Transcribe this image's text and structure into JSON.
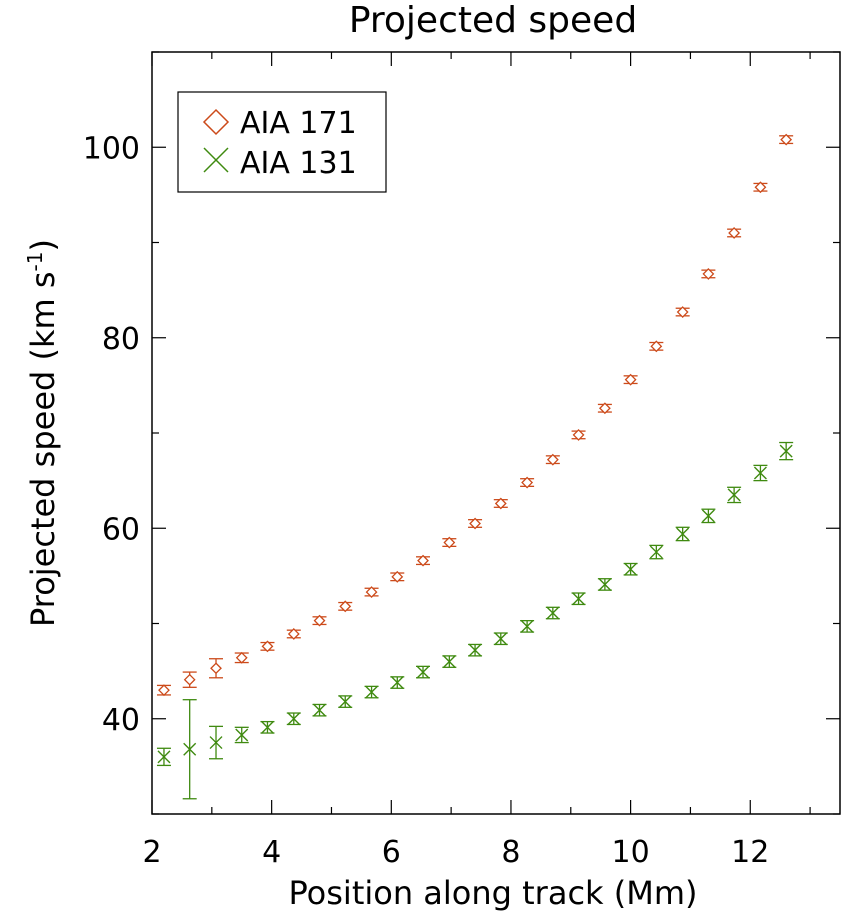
{
  "chart_data": {
    "type": "scatter",
    "title": "Projected speed",
    "xlabel": "Position along track (Mm)",
    "ylabel": "Projected speed (km s",
    "ylabel_sup": "-1",
    "ylabel_end": ")",
    "xlim": [
      2,
      13.5
    ],
    "ylim": [
      30,
      110
    ],
    "x_ticks": [
      2,
      4,
      6,
      8,
      10,
      12
    ],
    "x_tick_labels": [
      "2",
      "4",
      "6",
      "8",
      "10",
      "12"
    ],
    "y_ticks": [
      40,
      60,
      80,
      100
    ],
    "y_tick_labels": [
      "40",
      "60",
      "80",
      "100"
    ],
    "x_minor_step": 1,
    "y_minor_step": 10,
    "legend_position": "top-left",
    "series": [
      {
        "name": "AIA 171",
        "marker": "diamond",
        "color": "#cc4a1a",
        "x": [
          2.2,
          2.63,
          3.07,
          3.5,
          3.93,
          4.37,
          4.8,
          5.23,
          5.67,
          6.1,
          6.53,
          6.97,
          7.4,
          7.83,
          8.27,
          8.7,
          9.13,
          9.57,
          10.0,
          10.43,
          10.87,
          11.3,
          11.73,
          12.17,
          12.6
        ],
        "y": [
          43.0,
          44.1,
          45.3,
          46.4,
          47.6,
          48.9,
          50.3,
          51.8,
          53.3,
          54.9,
          56.6,
          58.5,
          60.5,
          62.6,
          64.8,
          67.2,
          69.8,
          72.6,
          75.6,
          79.1,
          82.7,
          86.7,
          91.0,
          95.8,
          100.8
        ],
        "err": [
          0.5,
          0.8,
          1.0,
          0.5,
          0.4,
          0.4,
          0.4,
          0.4,
          0.4,
          0.4,
          0.4,
          0.4,
          0.4,
          0.4,
          0.4,
          0.4,
          0.4,
          0.4,
          0.4,
          0.4,
          0.4,
          0.4,
          0.4,
          0.4,
          0.4
        ]
      },
      {
        "name": "AIA 131",
        "marker": "x",
        "color": "#3f8a10",
        "x": [
          2.2,
          2.63,
          3.07,
          3.5,
          3.93,
          4.37,
          4.8,
          5.23,
          5.67,
          6.1,
          6.53,
          6.97,
          7.4,
          7.83,
          8.27,
          8.7,
          9.13,
          9.57,
          10.0,
          10.43,
          10.87,
          11.3,
          11.73,
          12.17,
          12.6
        ],
        "y": [
          36.0,
          36.8,
          37.5,
          38.3,
          39.1,
          40.0,
          40.9,
          41.8,
          42.8,
          43.8,
          44.9,
          46.0,
          47.2,
          48.4,
          49.7,
          51.1,
          52.6,
          54.1,
          55.7,
          57.5,
          59.4,
          61.3,
          63.5,
          65.8,
          68.1
        ],
        "err": [
          0.9,
          5.2,
          1.7,
          0.8,
          0.6,
          0.6,
          0.6,
          0.6,
          0.6,
          0.6,
          0.6,
          0.6,
          0.6,
          0.6,
          0.6,
          0.6,
          0.6,
          0.6,
          0.6,
          0.7,
          0.7,
          0.7,
          0.8,
          0.8,
          0.9
        ]
      }
    ]
  }
}
